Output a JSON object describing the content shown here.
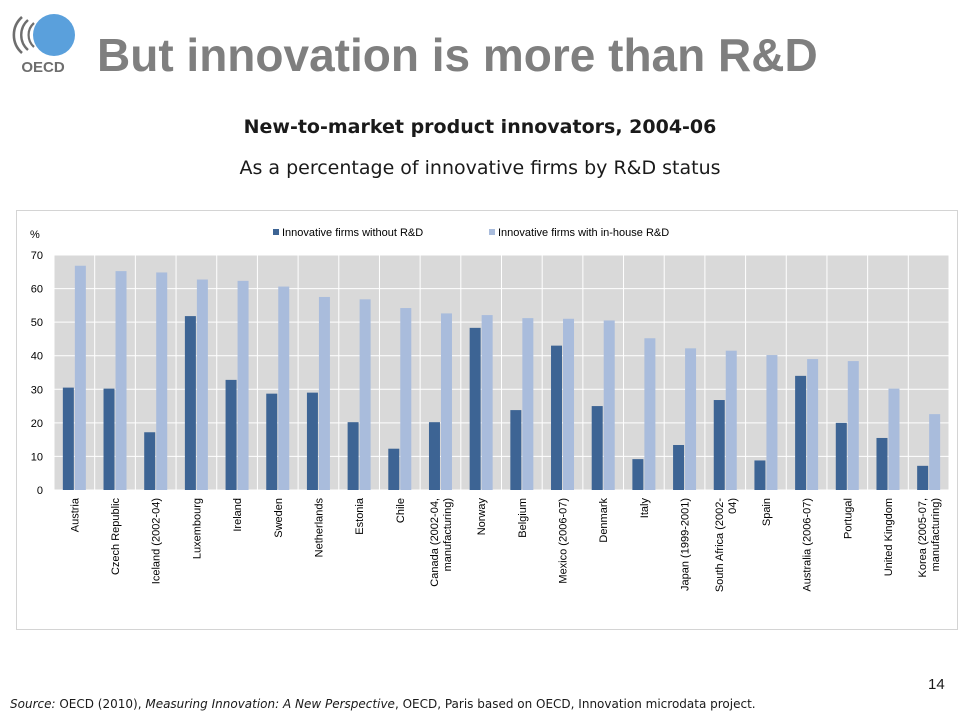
{
  "header": {
    "logo_text": "OECD",
    "title": "But innovation is more than R&D"
  },
  "footer": {
    "source_label": "Source:",
    "source_part1": " OECD (2010), ",
    "source_title": "Measuring Innovation: A New Perspective",
    "source_part2": ", OECD, Paris based on OECD, Innovation microdata project.",
    "page_number": "14"
  },
  "colors": {
    "series_without_rd": "#3d6494",
    "series_with_rd": "#a9bcdc",
    "plot_background": "#d9d9d9",
    "title_gray": "#7f7f7f"
  },
  "chart_data": {
    "type": "bar",
    "title": "New-to-market product innovators, 2004-06",
    "subtitle": "As a percentage of innovative firms by R&D status",
    "ylabel": "%",
    "xlabel": "",
    "ylim": [
      0,
      70
    ],
    "yticks": [
      0,
      10,
      20,
      30,
      40,
      50,
      60,
      70
    ],
    "grid": true,
    "legend_position": "top",
    "categories": [
      "Austria",
      "Czech Republic",
      "Iceland (2002-04)",
      "Luxembourg",
      "Ireland",
      "Sweden",
      "Netherlands",
      "Estonia",
      "Chile",
      "Canada (2002-04, manufacturing)",
      "Norway",
      "Belgium",
      "Mexico (2006-07)",
      "Denmark",
      "Italy",
      "Japan (1999-2001)",
      "South Africa (2002-04)",
      "Spain",
      "Australia (2006-07)",
      "Portugal",
      "United Kingdom",
      "Korea (2005-07, manufacturing)"
    ],
    "category_lines": [
      [
        "Austria"
      ],
      [
        "Czech Republic"
      ],
      [
        "Iceland (2002-04)"
      ],
      [
        "Luxembourg"
      ],
      [
        "Ireland"
      ],
      [
        "Sweden"
      ],
      [
        "Netherlands"
      ],
      [
        "Estonia"
      ],
      [
        "Chile"
      ],
      [
        "Canada (2002-04,",
        "manufacturing)"
      ],
      [
        "Norway"
      ],
      [
        "Belgium"
      ],
      [
        "Mexico (2006-07)"
      ],
      [
        "Denmark"
      ],
      [
        "Italy"
      ],
      [
        "Japan (1999-2001)"
      ],
      [
        "South Africa (2002-",
        "04)"
      ],
      [
        "Spain"
      ],
      [
        "Australia (2006-07)"
      ],
      [
        "Portugal"
      ],
      [
        "United Kingdom"
      ],
      [
        "Korea (2005-07,",
        "manufacturing)"
      ]
    ],
    "series": [
      {
        "name": "Innovative firms without R&D",
        "values": [
          30.5,
          30.2,
          17.2,
          51.8,
          32.8,
          28.7,
          29.0,
          20.2,
          12.3,
          20.2,
          48.3,
          23.8,
          43.0,
          25.0,
          9.2,
          13.4,
          26.8,
          8.8,
          34.0,
          20.0,
          15.5,
          7.2
        ]
      },
      {
        "name": "Innovative firms with in-house R&D",
        "values": [
          66.8,
          65.2,
          64.8,
          62.7,
          62.3,
          60.6,
          57.5,
          56.8,
          54.2,
          52.6,
          52.1,
          51.2,
          51.0,
          50.5,
          45.2,
          42.2,
          41.5,
          40.2,
          39.0,
          38.4,
          30.2,
          22.6
        ]
      }
    ]
  }
}
